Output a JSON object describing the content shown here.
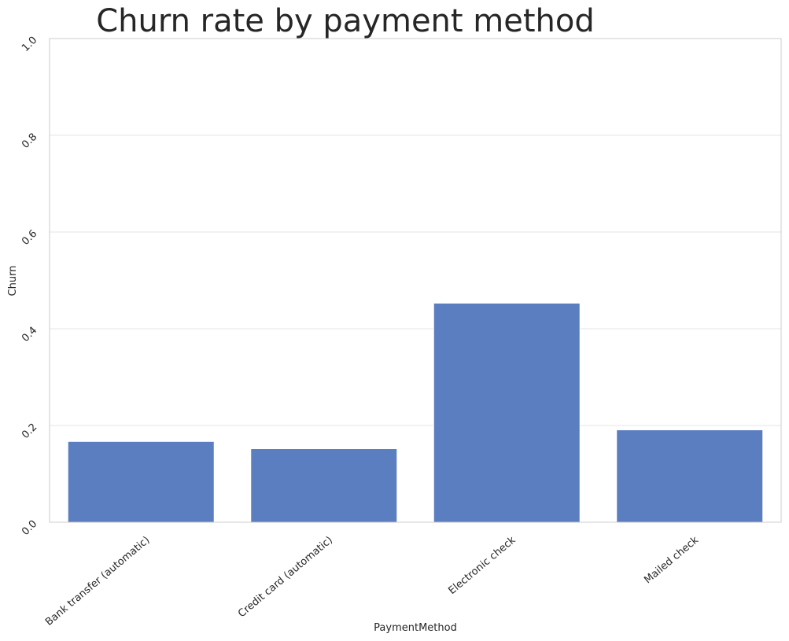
{
  "chart_data": {
    "type": "bar",
    "title": "Churn rate by payment method",
    "xlabel": "PaymentMethod",
    "ylabel": "Churn",
    "categories": [
      "Bank transfer (automatic)",
      "Credit card (automatic)",
      "Electronic check",
      "Mailed check"
    ],
    "values": [
      0.167,
      0.152,
      0.453,
      0.191
    ],
    "ylim": [
      0.0,
      1.0
    ],
    "yticks": [
      0.0,
      0.2,
      0.4,
      0.6,
      0.8,
      1.0
    ],
    "ytick_labels": [
      "0.0",
      "0.2",
      "0.4",
      "0.6",
      "0.8",
      "1.0"
    ],
    "grid": true,
    "legend": null,
    "colors": {
      "bar": "#5b7ec0",
      "grid": "#e6e6e6",
      "border": "#cccccc",
      "text": "#262626"
    }
  }
}
